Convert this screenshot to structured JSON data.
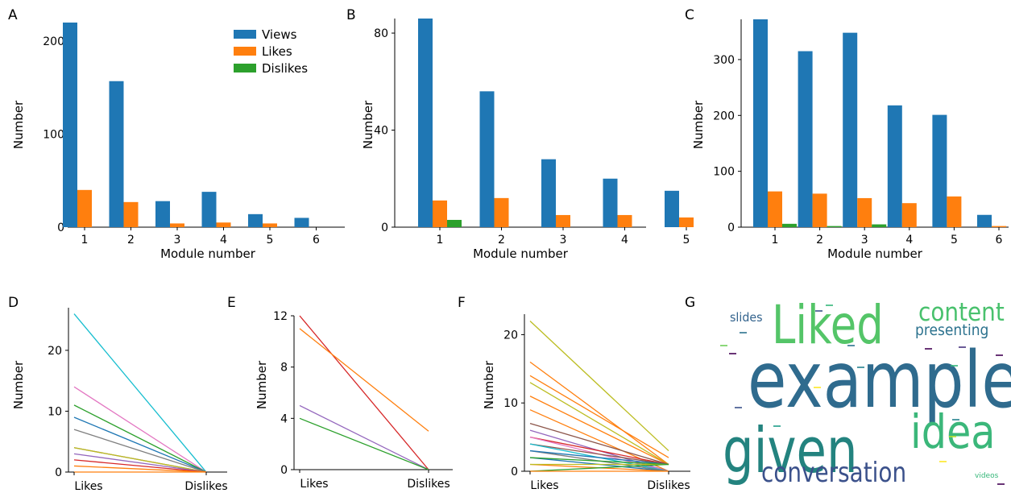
{
  "chart_data": [
    {
      "panel": "A",
      "type": "bar",
      "categories": [
        "1",
        "2",
        "3",
        "4",
        "5",
        "6"
      ],
      "series": [
        {
          "name": "Views",
          "values": [
            220,
            157,
            28,
            38,
            14,
            10
          ]
        },
        {
          "name": "Likes",
          "values": [
            40,
            27,
            4,
            5,
            4,
            0
          ]
        },
        {
          "name": "Dislikes",
          "values": [
            0,
            0,
            0,
            0,
            0,
            0
          ]
        }
      ],
      "yticks": [
        "0",
        "100",
        "200"
      ],
      "ylim": [
        0,
        220
      ],
      "xlabel": "Module number",
      "ylabel": "Number",
      "legend": "top-right"
    },
    {
      "panel": "B",
      "type": "bar",
      "categories": [
        "1",
        "2",
        "3",
        "4",
        "5"
      ],
      "series": [
        {
          "name": "Views",
          "values": [
            86,
            56,
            28,
            20,
            15
          ]
        },
        {
          "name": "Likes",
          "values": [
            11,
            12,
            5,
            5,
            4
          ]
        },
        {
          "name": "Dislikes",
          "values": [
            3,
            0,
            0,
            0,
            0
          ]
        }
      ],
      "yticks": [
        "0",
        "40",
        "80"
      ],
      "ylim": [
        0,
        86
      ],
      "xlabel": "Module number",
      "ylabel": "Number"
    },
    {
      "panel": "C",
      "type": "bar",
      "categories": [
        "1",
        "2",
        "3",
        "4",
        "5",
        "6"
      ],
      "series": [
        {
          "name": "Views",
          "values": [
            372,
            315,
            348,
            218,
            201,
            22
          ]
        },
        {
          "name": "Likes",
          "values": [
            64,
            60,
            52,
            43,
            55,
            2
          ]
        },
        {
          "name": "Dislikes",
          "values": [
            6,
            2,
            5,
            0,
            0,
            0
          ]
        }
      ],
      "yticks": [
        "0",
        "100",
        "200",
        "300"
      ],
      "ylim": [
        0,
        372
      ],
      "xlabel": "Module number",
      "ylabel": "Number"
    },
    {
      "panel": "D",
      "type": "line",
      "categories": [
        "Likes",
        "Dislikes"
      ],
      "ylim": [
        0,
        27
      ],
      "yticks": [
        "0",
        "10",
        "20"
      ],
      "ylabel": "Number",
      "series": [
        {
          "values": [
            26,
            0
          ],
          "color": "#17becf"
        },
        {
          "values": [
            14,
            0
          ],
          "color": "#e377c2"
        },
        {
          "values": [
            11,
            0
          ],
          "color": "#2ca02c"
        },
        {
          "values": [
            9,
            0
          ],
          "color": "#1f77b4"
        },
        {
          "values": [
            7,
            0
          ],
          "color": "#7f7f7f"
        },
        {
          "values": [
            4,
            0
          ],
          "color": "#8c564b"
        },
        {
          "values": [
            4,
            0
          ],
          "color": "#bcbd22"
        },
        {
          "values": [
            3,
            0
          ],
          "color": "#9467bd"
        },
        {
          "values": [
            2,
            0
          ],
          "color": "#d62728"
        },
        {
          "values": [
            1,
            0
          ],
          "color": "#ff7f0e"
        },
        {
          "values": [
            0,
            0
          ],
          "color": "#ff7f0e"
        }
      ]
    },
    {
      "panel": "E",
      "type": "line",
      "categories": [
        "Likes",
        "Dislikes"
      ],
      "ylim": [
        0,
        12
      ],
      "yticks": [
        "0",
        "4",
        "8",
        "12"
      ],
      "ylabel": "Number",
      "series": [
        {
          "values": [
            12,
            0
          ],
          "color": "#d62728"
        },
        {
          "values": [
            11,
            3
          ],
          "color": "#ff7f0e"
        },
        {
          "values": [
            5,
            0
          ],
          "color": "#9467bd"
        },
        {
          "values": [
            4,
            0
          ],
          "color": "#2ca02c"
        }
      ]
    },
    {
      "panel": "F",
      "type": "line",
      "categories": [
        "Likes",
        "Dislikes"
      ],
      "ylim": [
        0,
        23
      ],
      "yticks": [
        "0",
        "10",
        "20"
      ],
      "ylabel": "Number",
      "series": [
        {
          "values": [
            22,
            3
          ],
          "color": "#bcbd22"
        },
        {
          "values": [
            16,
            1
          ],
          "color": "#ff7f0e"
        },
        {
          "values": [
            14,
            2
          ],
          "color": "#ff7f0e"
        },
        {
          "values": [
            13,
            1
          ],
          "color": "#bcbd22"
        },
        {
          "values": [
            11,
            1
          ],
          "color": "#ff7f0e"
        },
        {
          "values": [
            9,
            0
          ],
          "color": "#ff7f0e"
        },
        {
          "values": [
            7,
            1
          ],
          "color": "#8c564b"
        },
        {
          "values": [
            6,
            0
          ],
          "color": "#9467bd"
        },
        {
          "values": [
            5,
            1
          ],
          "color": "#d62728"
        },
        {
          "values": [
            5,
            0
          ],
          "color": "#e377c2"
        },
        {
          "values": [
            4,
            1
          ],
          "color": "#8c564b"
        },
        {
          "values": [
            4,
            0
          ],
          "color": "#17becf"
        },
        {
          "values": [
            3,
            0
          ],
          "color": "#7f7f7f"
        },
        {
          "values": [
            3,
            1
          ],
          "color": "#1f77b4"
        },
        {
          "values": [
            2,
            0
          ],
          "color": "#1f77b4"
        },
        {
          "values": [
            2,
            1
          ],
          "color": "#2ca02c"
        },
        {
          "values": [
            1,
            0
          ],
          "color": "#ff7f0e"
        },
        {
          "values": [
            1,
            1
          ],
          "color": "#bcbd22"
        },
        {
          "values": [
            0,
            1
          ],
          "color": "#2ca02c"
        },
        {
          "values": [
            0,
            0
          ],
          "color": "#ff7f0e"
        }
      ]
    }
  ],
  "wordcloud": {
    "panel": "G",
    "words": [
      {
        "text": "example",
        "color": "#2f6b8e"
      },
      {
        "text": "given",
        "color": "#23837f"
      },
      {
        "text": "Liked",
        "color": "#54c568"
      },
      {
        "text": "idea",
        "color": "#3bb77a"
      },
      {
        "text": "content",
        "color": "#49c16d"
      },
      {
        "text": "conversation",
        "color": "#3b518b"
      },
      {
        "text": "presenting",
        "color": "#2c728e"
      },
      {
        "text": "slides",
        "color": "#33638d"
      },
      {
        "text": "videos",
        "color": "#35b779"
      }
    ]
  },
  "colors": {
    "Views": "#1f77b4",
    "Likes": "#ff7f0e",
    "Dislikes": "#2ca02c"
  }
}
